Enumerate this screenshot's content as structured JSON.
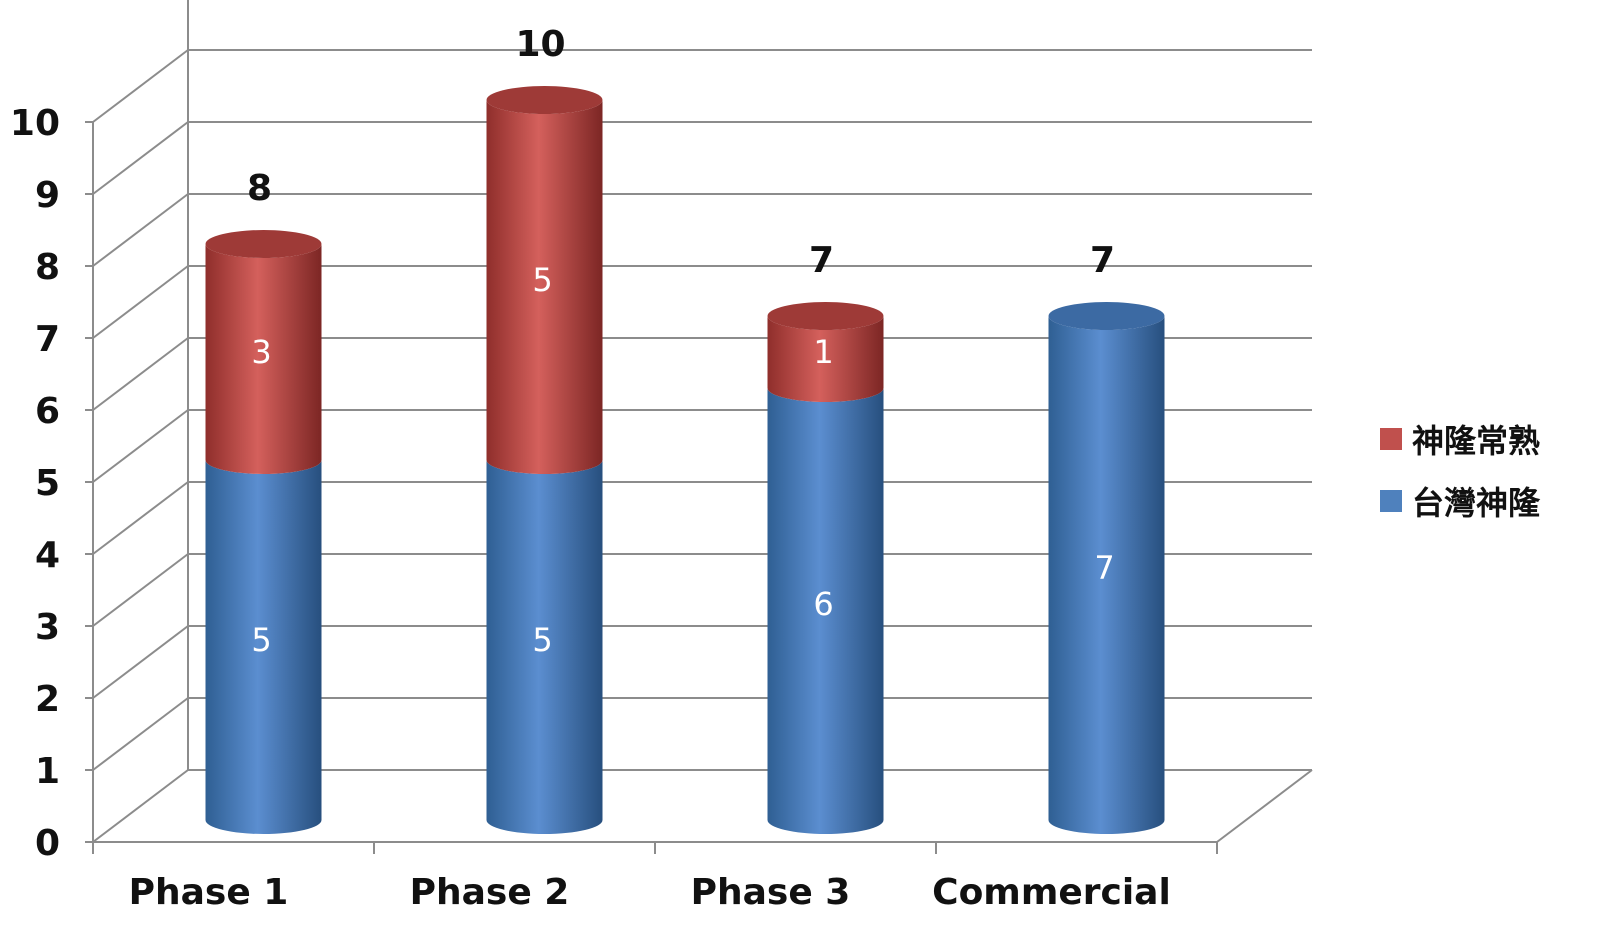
{
  "chart_data": {
    "type": "bar",
    "stacked": true,
    "style": "3d-cylinder",
    "categories": [
      "Phase 1",
      "Phase 2",
      "Phase 3",
      "Commercial"
    ],
    "series": [
      {
        "name": "台灣神隆",
        "values": [
          5,
          5,
          6,
          7
        ],
        "color": "#4f81bd"
      },
      {
        "name": "神隆常熟",
        "values": [
          3,
          5,
          1,
          0
        ],
        "color": "#c0504d"
      }
    ],
    "totals": [
      8,
      10,
      7,
      7
    ],
    "segment_labels": [
      [
        "5",
        "5",
        "6",
        "7"
      ],
      [
        "3",
        "5",
        "1",
        ""
      ]
    ],
    "y_ticks": [
      "0",
      "1",
      "2",
      "3",
      "4",
      "5",
      "6",
      "7",
      "8",
      "9",
      "10"
    ],
    "ylim": [
      0,
      10
    ],
    "title": "",
    "xlabel": "",
    "ylabel": "",
    "grid": true,
    "legend": {
      "position": "right",
      "order": [
        "神隆常熟",
        "台灣神隆"
      ]
    }
  }
}
